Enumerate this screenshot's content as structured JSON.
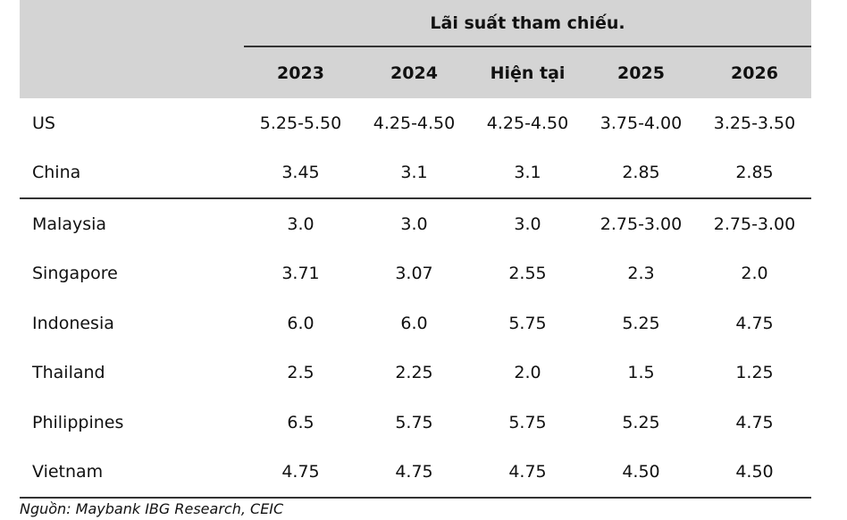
{
  "table": {
    "title": "Lãi suất tham chiếu.",
    "columns": [
      "2023",
      "2024",
      "Hiện tại",
      "2025",
      "2026"
    ],
    "group1": [
      {
        "country": "US",
        "values": [
          "5.25-5.50",
          "4.25-4.50",
          "4.25-4.50",
          "3.75-4.00",
          "3.25-3.50"
        ]
      },
      {
        "country": "China",
        "values": [
          "3.45",
          "3.1",
          "3.1",
          "2.85",
          "2.85"
        ]
      }
    ],
    "group2": [
      {
        "country": "Malaysia",
        "values": [
          "3.0",
          "3.0",
          "3.0",
          "2.75-3.00",
          "2.75-3.00"
        ]
      },
      {
        "country": "Singapore",
        "values": [
          "3.71",
          "3.07",
          "2.55",
          "2.3",
          "2.0"
        ]
      },
      {
        "country": "Indonesia",
        "values": [
          "6.0",
          "6.0",
          "5.75",
          "5.25",
          "4.75"
        ]
      },
      {
        "country": "Thailand",
        "values": [
          "2.5",
          "2.25",
          "2.0",
          "1.5",
          "1.25"
        ]
      },
      {
        "country": "Philippines",
        "values": [
          "6.5",
          "5.75",
          "5.75",
          "5.25",
          "4.75"
        ]
      },
      {
        "country": "Vietnam",
        "values": [
          "4.75",
          "4.75",
          "4.75",
          "4.50",
          "4.50"
        ]
      }
    ]
  },
  "source": "Nguồn: Maybank IBG Research, CEIC"
}
